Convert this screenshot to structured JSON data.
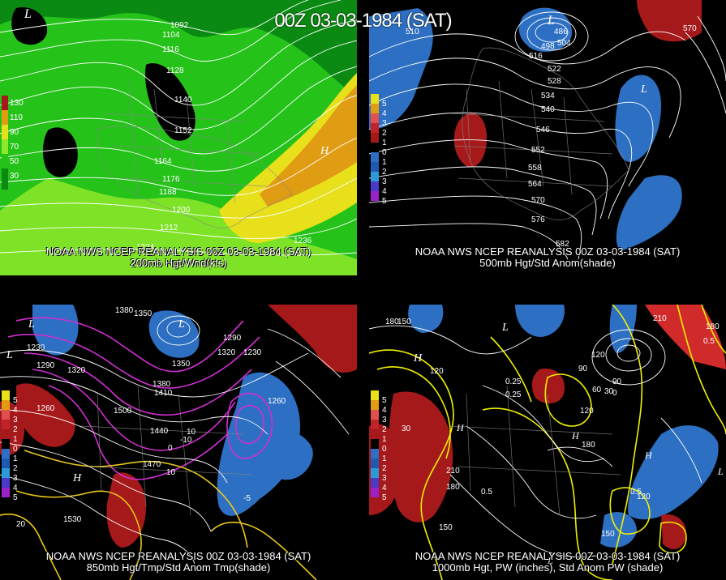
{
  "title": "00Z 03-03-1984 (SAT)",
  "panels": {
    "p200": {
      "source": "NOAA NWS NCEP REANALYSIS 00Z 03-03-1984 (SAT)",
      "caption": "200mb Hgt/Wnd(kts)",
      "scale": [
        "130",
        "110",
        "90",
        "70",
        "50",
        "30"
      ],
      "contours": [
        "1092",
        "1104",
        "1116",
        "1128",
        "1140",
        "1152",
        "1164",
        "1176",
        "1188",
        "1200",
        "1212",
        "1224",
        "1236"
      ],
      "marks": [
        "L",
        "H"
      ]
    },
    "p500": {
      "source": "NOAA NWS NCEP REANALYSIS 00Z 03-03-1984 (SAT)",
      "caption": "500mb Hgt/Std Anom(shade)",
      "scale": [
        "5",
        "4",
        "3",
        "2",
        "1",
        "0",
        "1",
        "2",
        "3",
        "4",
        "5"
      ],
      "contours": [
        "510",
        "516",
        "522",
        "528",
        "534",
        "540",
        "546",
        "552",
        "558",
        "564",
        "570",
        "576",
        "582",
        "570",
        "486",
        "498",
        "504"
      ],
      "marks": [
        "L",
        "L"
      ]
    },
    "p850": {
      "source": "NOAA NWS NCEP REANALYSIS 00Z 03-03-1984 (SAT)",
      "caption": "850mb Hgt/Tmp/Std Anom Tmp(shade)",
      "scale": [
        "5",
        "4",
        "3",
        "2",
        "1",
        "0",
        "1",
        "2",
        "3",
        "4",
        "5"
      ],
      "contours": [
        "1380",
        "1350",
        "1230",
        "1290",
        "1320",
        "1260",
        "1500",
        "1440",
        "1470",
        "1380",
        "1410",
        "1350",
        "1290",
        "1320",
        "1230",
        "1530",
        "1260",
        "10",
        "10",
        "-10",
        "0",
        "20",
        "-5"
      ],
      "marks": [
        "L",
        "L",
        "L",
        "H"
      ]
    },
    "p1000": {
      "source": "NOAA NWS NCEP REANALYSIS 00Z 03-03-1984 (SAT)",
      "caption": "1000mb Hgt, PW (inches), Std Anom PW (shade)",
      "scale": [
        "5",
        "4",
        "3",
        "2",
        "1",
        "0",
        "1",
        "2",
        "3",
        "4",
        "5"
      ],
      "contours": [
        "180",
        "150",
        "120",
        "90",
        "60",
        "30",
        "0",
        "210",
        "180",
        "150",
        "120",
        "90",
        "0.25",
        "0.25",
        "0.5",
        "0.5",
        "0.5",
        "30",
        "120",
        "180",
        "210",
        "180",
        "150",
        "120"
      ],
      "marks": [
        "L",
        "H",
        "H",
        "H",
        "L",
        "L",
        "H"
      ]
    }
  },
  "colors": {
    "wind_dark_green": "#0a8a12",
    "wind_green": "#25c21a",
    "wind_light_green": "#8ee82a",
    "wind_yellow": "#e8e01a",
    "wind_orange": "#e09c12",
    "anom_red": "#a5191a",
    "anom_blue": "#2d6fc2",
    "temp_magenta": "#d12ed1",
    "temp_yellow": "#e8c81a",
    "pw_yellow": "#f0f000"
  }
}
